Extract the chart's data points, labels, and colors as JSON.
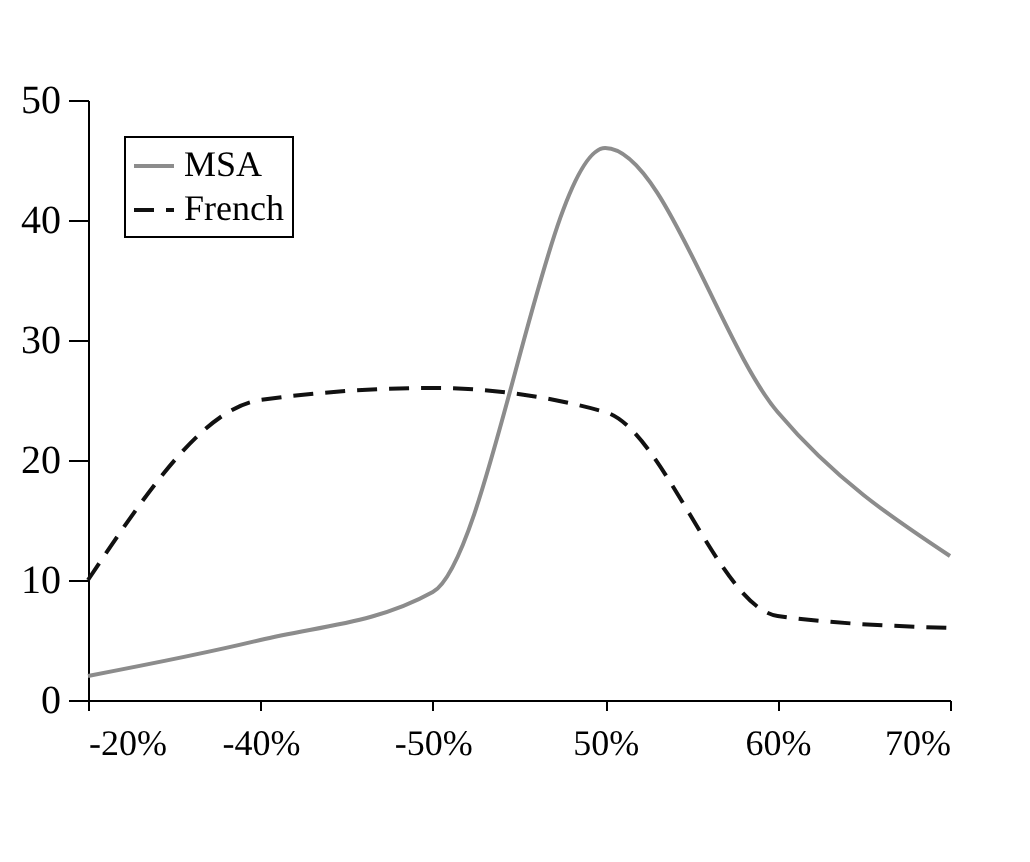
{
  "chart_data": {
    "type": "line",
    "categories": [
      "-20%",
      "-40%",
      "-50%",
      "50%",
      "60%",
      "70%"
    ],
    "series": [
      {
        "name": "MSA",
        "color": "#8c8c8c",
        "line_style": "solid",
        "values": [
          2,
          5,
          9,
          46,
          24,
          12
        ]
      },
      {
        "name": "French",
        "color": "#111111",
        "line_style": "dashed",
        "values": [
          10,
          25,
          26,
          24,
          7,
          6
        ]
      }
    ],
    "ylim": [
      0,
      50
    ],
    "yticks": [
      0,
      10,
      20,
      30,
      40,
      50
    ],
    "grid": false,
    "legend": "top left",
    "marker": "none"
  }
}
